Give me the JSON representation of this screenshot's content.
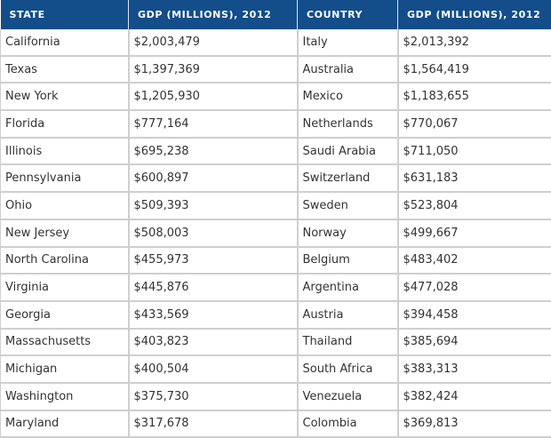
{
  "headers": [
    "STATE",
    "GDP (MILLIONS), 2012",
    "COUNTRY",
    "GDP (MILLIONS), 2012"
  ],
  "rows": [
    [
      "California",
      "$2,003,479",
      "Italy",
      "$2,013,392"
    ],
    [
      "Texas",
      "$1,397,369",
      "Australia",
      "$1,564,419"
    ],
    [
      "New York",
      "$1,205,930",
      "Mexico",
      "$1,183,655"
    ],
    [
      "Florida",
      "$777,164",
      "Netherlands",
      "$770,067"
    ],
    [
      "Illinois",
      "$695,238",
      "Saudi Arabia",
      "$711,050"
    ],
    [
      "Pennsylvania",
      "$600,897",
      "Switzerland",
      "$631,183"
    ],
    [
      "Ohio",
      "$509,393",
      "Sweden",
      "$523,804"
    ],
    [
      "New Jersey",
      "$508,003",
      "Norway",
      "$499,667"
    ],
    [
      "North Carolina",
      "$455,973",
      "Belgium",
      "$483,402"
    ],
    [
      "Virginia",
      "$445,876",
      "Argentina",
      "$477,028"
    ],
    [
      "Georgia",
      "$433,569",
      "Austria",
      "$394,458"
    ],
    [
      "Massachusetts",
      "$403,823",
      "Thailand",
      "$385,694"
    ],
    [
      "Michigan",
      "$400,504",
      "South Africa",
      "$383,313"
    ],
    [
      "Washington",
      "$375,730",
      "Venezuela",
      "$382,424"
    ],
    [
      "Maryland",
      "$317,678",
      "Colombia",
      "$369,813"
    ]
  ]
}
